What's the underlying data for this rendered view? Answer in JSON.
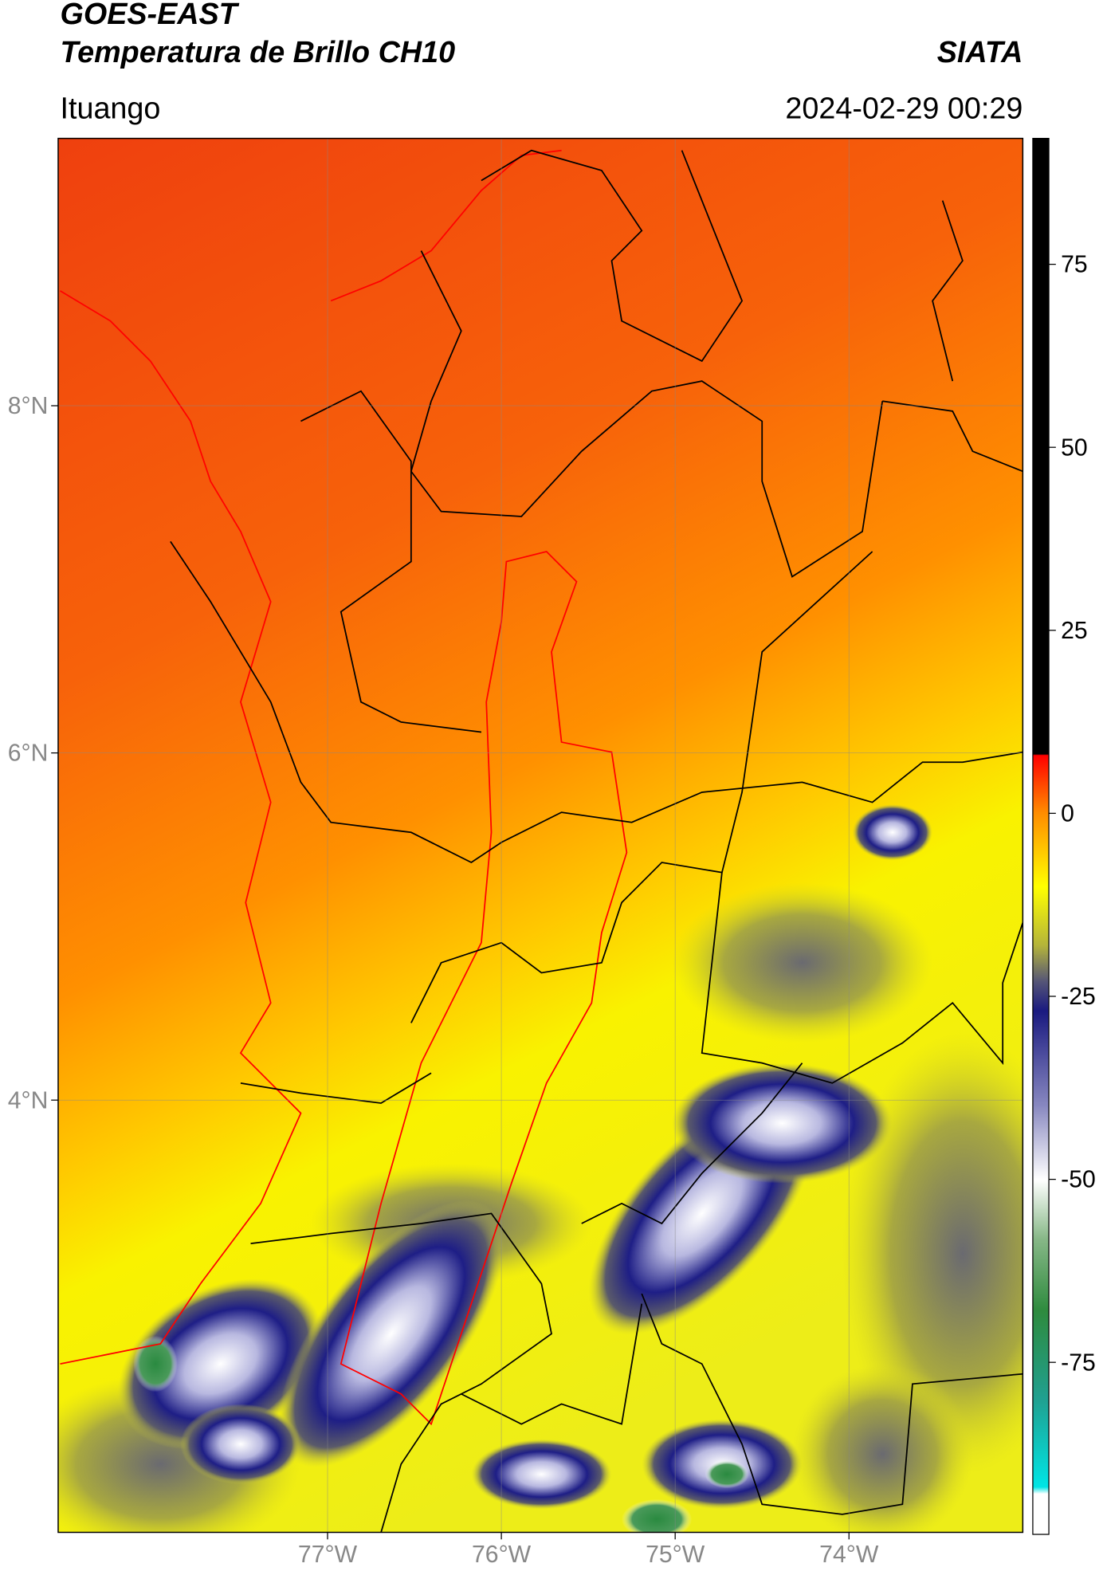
{
  "header": {
    "title": "GOES-EAST",
    "subtitle": "Temperatura de Brillo CH10",
    "agency": "SIATA",
    "location": "Ituango",
    "datetime": "2024-02-29 00:29"
  },
  "map": {
    "xlim": [
      -78.55,
      -73.0
    ],
    "ylim": [
      1.51,
      9.54
    ],
    "xticks": [
      {
        "value": -77,
        "label": "77°W"
      },
      {
        "value": -76,
        "label": "76°W"
      },
      {
        "value": -75,
        "label": "75°W"
      },
      {
        "value": -74,
        "label": "74°W"
      }
    ],
    "yticks": [
      {
        "value": 8,
        "label": "8°N"
      },
      {
        "value": 6,
        "label": "6°N"
      },
      {
        "value": 4,
        "label": "4°N"
      }
    ],
    "grid": true
  },
  "colorbar": {
    "lim": [
      -98.5,
      92.2
    ],
    "ticks": [
      75,
      50,
      25,
      0,
      -25,
      -50,
      -75
    ]
  }
}
